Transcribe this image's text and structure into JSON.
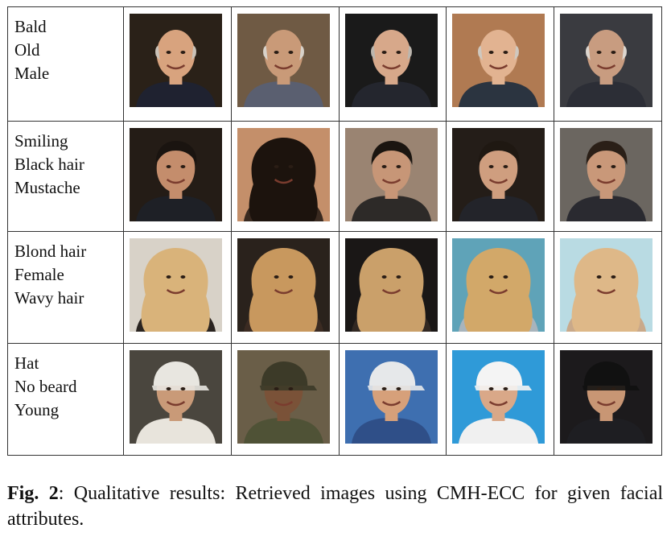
{
  "rows": [
    {
      "attributes": [
        "Bald",
        "Old",
        "Male"
      ],
      "photos": [
        {
          "icon": "bald-old-man-glasses-photo",
          "bg": "#2a2118",
          "skin": "#d8a37e",
          "hair": "none",
          "hairColor": "#c9c2b8",
          "shirt": "#1f2230"
        },
        {
          "icon": "bald-old-man-photo",
          "bg": "#6f5a44",
          "skin": "#c99a78",
          "hair": "none",
          "hairColor": "#d8d2ca",
          "shirt": "#5a5f70"
        },
        {
          "icon": "bald-old-man-glasses-photo",
          "bg": "#1a1a1a",
          "skin": "#d7a88a",
          "hair": "none",
          "hairColor": "#bcb6ae",
          "shirt": "#24262e"
        },
        {
          "icon": "bald-old-man-photo",
          "bg": "#b07a52",
          "skin": "#e2b391",
          "hair": "none",
          "hairColor": "#cfc8bf",
          "shirt": "#2b3440"
        },
        {
          "icon": "bald-old-man-beard-photo",
          "bg": "#3a3b40",
          "skin": "#c89c80",
          "hair": "none",
          "hairColor": "#dcd6cf",
          "shirt": "#2c2e36"
        }
      ]
    },
    {
      "attributes": [
        "Smiling",
        "Black hair",
        "Mustache"
      ],
      "photos": [
        {
          "icon": "smiling-man-mustache-photo",
          "bg": "#241c16",
          "skin": "#c48d6c",
          "hair": "short",
          "hairColor": "#1a1410",
          "shirt": "#1e2026"
        },
        {
          "icon": "smiling-man-long-black-hair-photo",
          "bg": "#c48f6a",
          "skin": "#c08764",
          "hair": "long",
          "hairColor": "#1c130d",
          "shirt": "#3a2a20"
        },
        {
          "icon": "smiling-man-black-hair-photo",
          "bg": "#9a8472",
          "skin": "#c79677",
          "hair": "short",
          "hairColor": "#1b1510",
          "shirt": "#2d2a28"
        },
        {
          "icon": "smiling-man-glasses-photo",
          "bg": "#241d18",
          "skin": "#cf9e7f",
          "hair": "short",
          "hairColor": "#1f1812",
          "shirt": "#23242a"
        },
        {
          "icon": "smiling-man-beard-photo",
          "bg": "#6b6660",
          "skin": "#c99879",
          "hair": "short",
          "hairColor": "#2a1f17",
          "shirt": "#2a2a30"
        }
      ]
    },
    {
      "attributes": [
        "Blond hair",
        "Female",
        "Wavy hair"
      ],
      "photos": [
        {
          "icon": "blond-woman-photo",
          "bg": "#d8d2c8",
          "skin": "#e6bea0",
          "hair": "long",
          "hairColor": "#d9b37a",
          "shirt": "#2a2420"
        },
        {
          "icon": "blond-woman-wavy-hair-photo",
          "bg": "#2a221c",
          "skin": "#e0b093",
          "hair": "long",
          "hairColor": "#c8985e",
          "shirt": "#3b2b22"
        },
        {
          "icon": "blond-woman-wavy-hair-photo",
          "bg": "#1a1716",
          "skin": "#d6a585",
          "hair": "long",
          "hairColor": "#caa06a",
          "shirt": "#322822"
        },
        {
          "icon": "blond-woman-smiling-photo",
          "bg": "#5fa3b8",
          "skin": "#e4b496",
          "hair": "long",
          "hairColor": "#d2a869",
          "shirt": "#a8b4bc"
        },
        {
          "icon": "blond-woman-smiling-photo",
          "bg": "#b9dbe3",
          "skin": "#e8c0a4",
          "hair": "long",
          "hairColor": "#deb888",
          "shirt": "#c9a98a"
        }
      ]
    },
    {
      "attributes": [
        "Hat",
        "No beard",
        "Young"
      ],
      "photos": [
        {
          "icon": "young-man-cap-photo",
          "bg": "#4a463e",
          "skin": "#c99a78",
          "hair": "cap",
          "hairColor": "#e8e6e0",
          "shirt": "#e8e4dc"
        },
        {
          "icon": "young-man-beret-photo",
          "bg": "#6a5e48",
          "skin": "#7a5238",
          "hair": "cap",
          "hairColor": "#3c3a28",
          "shirt": "#4f5236"
        },
        {
          "icon": "young-woman-visor-photo",
          "bg": "#3e6fb0",
          "skin": "#d6a07a",
          "hair": "cap",
          "hairColor": "#e6e8ea",
          "shirt": "#2f4f88"
        },
        {
          "icon": "young-man-white-cap-photo",
          "bg": "#2f9ad8",
          "skin": "#d9a888",
          "hair": "cap",
          "hairColor": "#f4f4f4",
          "shirt": "#f0f0f0"
        },
        {
          "icon": "young-man-helmet-photo",
          "bg": "#1c1a1c",
          "skin": "#c89674",
          "hair": "cap",
          "hairColor": "#111111",
          "shirt": "#1e1e22"
        }
      ]
    }
  ],
  "caption": {
    "prefix": "Fig. 2",
    "text": ": Qualitative results: Retrieved images using CMH-ECC for given facial attributes."
  }
}
